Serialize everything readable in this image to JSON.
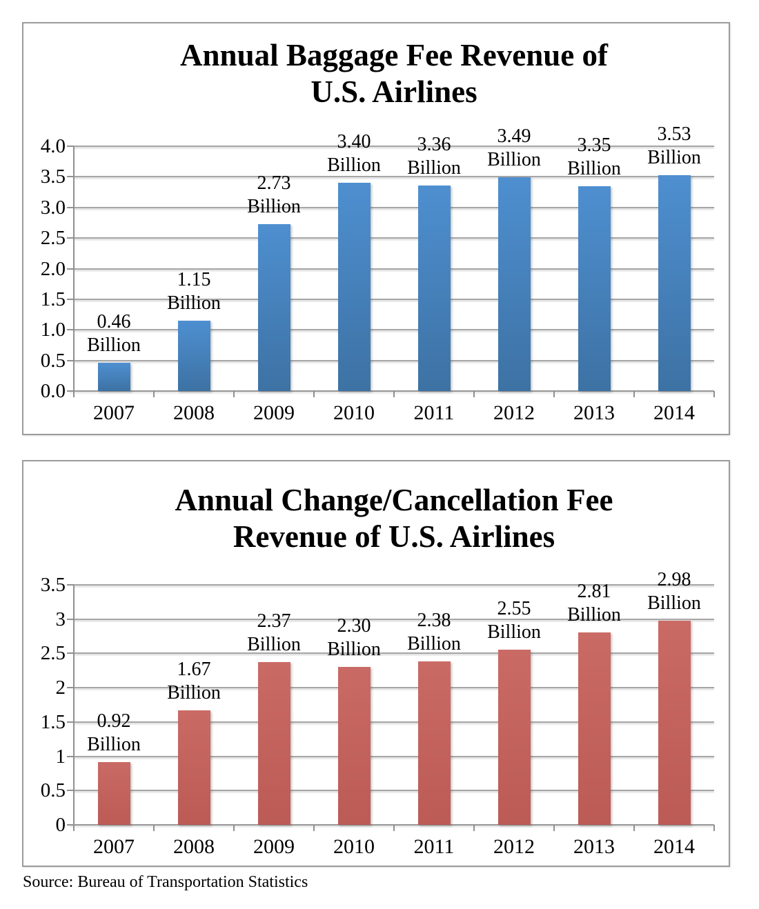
{
  "source_note": "Source: Bureau of Transportation Statistics",
  "colors": {
    "background": "#ffffff",
    "text": "#000000",
    "chart_border": "#9b9b9b",
    "gridline": "#a6a6a6",
    "axis": "#8f8f8f",
    "baggage_bar_top": "#4e8fd0",
    "baggage_bar_bottom": "#3d72a4",
    "change_fee_bar_top": "#ca6a64",
    "change_fee_bar_bottom": "#bc5b56"
  },
  "chart_data": [
    {
      "type": "bar",
      "title": "Annual Baggage Fee Revenue of U.S. Airlines",
      "title_lines": [
        "Annual Baggage Fee Revenue of",
        "U.S. Airlines"
      ],
      "categories": [
        "2007",
        "2008",
        "2009",
        "2010",
        "2011",
        "2012",
        "2013",
        "2014"
      ],
      "values": [
        0.46,
        1.15,
        2.73,
        3.4,
        3.36,
        3.49,
        3.35,
        3.53
      ],
      "data_labels": [
        "0.46",
        "1.15",
        "2.73",
        "3.40",
        "3.36",
        "3.49",
        "3.35",
        "3.53"
      ],
      "unit_label": "Billion",
      "xlabel": "",
      "ylabel": "",
      "ylim": [
        0,
        4.0
      ],
      "ytick_labels": [
        "4.0",
        "3.5",
        "3.0",
        "2.5",
        "2.0",
        "1.5",
        "1.0",
        "0.5",
        "0.0"
      ],
      "grid": true,
      "legend": "none",
      "bar_color_top": "#4e8fd0",
      "bar_color_bottom": "#3d72a4"
    },
    {
      "type": "bar",
      "title": "Annual Change/Cancellation Fee Revenue of U.S. Airlines",
      "title_lines": [
        "Annual Change/Cancellation Fee",
        "Revenue of U.S. Airlines"
      ],
      "categories": [
        "2007",
        "2008",
        "2009",
        "2010",
        "2011",
        "2012",
        "2013",
        "2014"
      ],
      "values": [
        0.92,
        1.67,
        2.37,
        2.3,
        2.38,
        2.55,
        2.81,
        2.98
      ],
      "data_labels": [
        "0.92",
        "1.67",
        "2.37",
        "2.30",
        "2.38",
        "2.55",
        "2.81",
        "2.98"
      ],
      "unit_label": "Billion",
      "xlabel": "",
      "ylabel": "",
      "ylim": [
        0,
        3.5
      ],
      "ytick_labels": [
        "3.5",
        "3",
        "2.5",
        "2",
        "1.5",
        "1",
        "0.5",
        "0"
      ],
      "grid": true,
      "legend": "none",
      "bar_color_top": "#ca6a64",
      "bar_color_bottom": "#bc5b56"
    }
  ]
}
